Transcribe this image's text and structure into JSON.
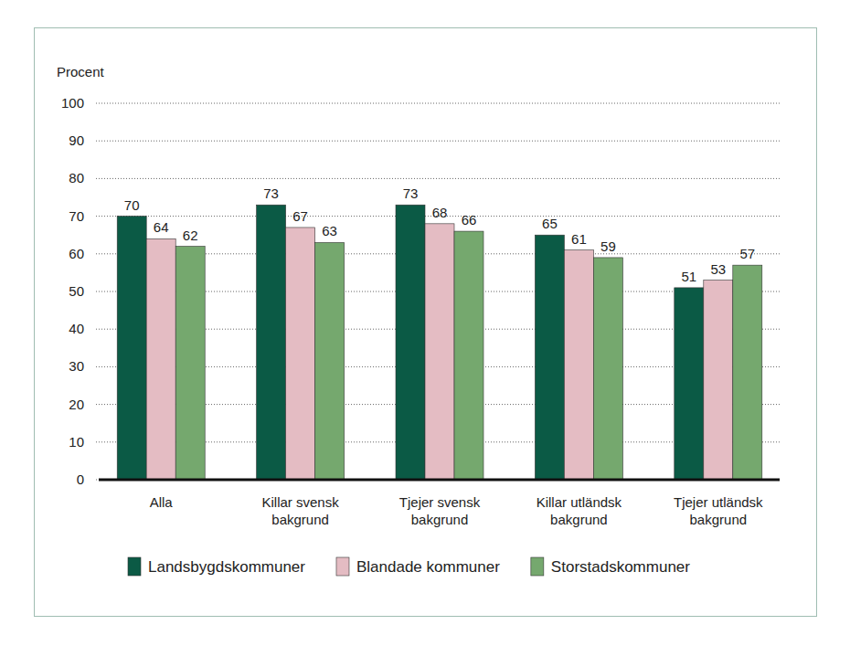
{
  "chart_data": {
    "type": "bar",
    "ylabel": "Procent",
    "categories": [
      "Alla",
      "Killar svensk bakgrund",
      "Tjejer svensk bakgrund",
      "Killar utländsk bakgrund",
      "Tjejer utländsk bakgrund"
    ],
    "series": [
      {
        "name": "Landsbygdskommuner",
        "color": "#0b5a45",
        "values": [
          70,
          73,
          73,
          65,
          51
        ]
      },
      {
        "name": "Blandade kommuner",
        "color": "#e4bcc3",
        "values": [
          64,
          67,
          68,
          61,
          53
        ]
      },
      {
        "name": "Storstadskommuner",
        "color": "#75a86e",
        "values": [
          62,
          63,
          66,
          59,
          57
        ]
      }
    ],
    "ylim": [
      0,
      100
    ],
    "yticks": [
      0,
      10,
      20,
      30,
      40,
      50,
      60,
      70,
      80,
      90,
      100
    ],
    "grid": true,
    "legend": "bottom",
    "data_labels": true
  }
}
